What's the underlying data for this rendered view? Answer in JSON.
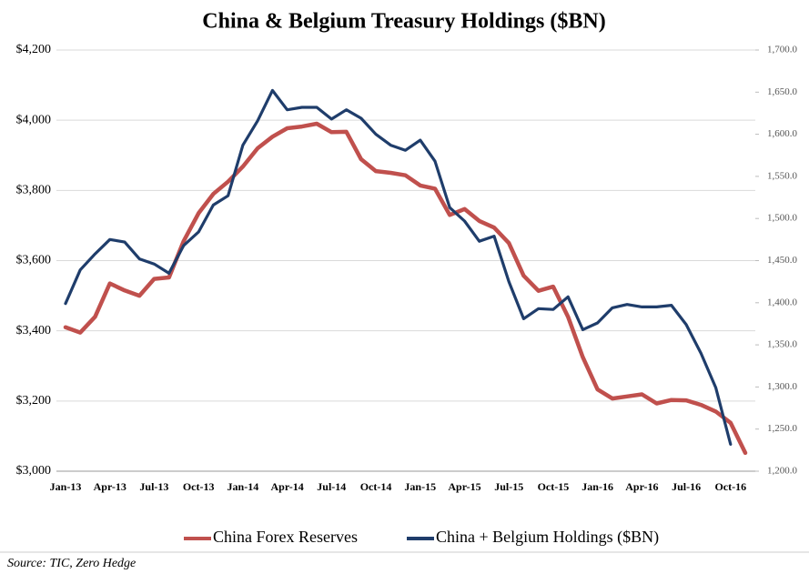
{
  "chart_data": {
    "type": "line",
    "title": "China & Belgium Treasury Holdings ($BN)",
    "source": "Source: TIC, Zero Hedge",
    "categories": [
      "Jan-13",
      null,
      null,
      "Apr-13",
      null,
      null,
      "Jul-13",
      null,
      null,
      "Oct-13",
      null,
      null,
      "Jan-14",
      null,
      null,
      "Apr-14",
      null,
      null,
      "Jul-14",
      null,
      null,
      "Oct-14",
      null,
      null,
      "Jan-15",
      null,
      null,
      "Apr-15",
      null,
      null,
      "Jul-15",
      null,
      null,
      "Oct-15",
      null,
      null,
      "Jan-16",
      null,
      null,
      "Apr-16",
      null,
      null,
      "Jul-16",
      null,
      null,
      "Oct-16",
      null
    ],
    "series": [
      {
        "name": "China Forex Reserves",
        "color": "#c0504d",
        "axis": "y",
        "values": [
          3410,
          3395,
          3440,
          3535,
          3515,
          3500,
          3548,
          3552,
          3656,
          3735,
          3790,
          3825,
          3868,
          3920,
          3953,
          3977,
          3982,
          3990,
          3966,
          3967,
          3889,
          3855,
          3850,
          3843,
          3814,
          3805,
          3730,
          3747,
          3713,
          3694,
          3650,
          3557,
          3514,
          3526,
          3440,
          3325,
          3233,
          3207,
          3213,
          3219,
          3193,
          3203,
          3202,
          3189,
          3170,
          3138,
          3052
        ]
      },
      {
        "name": "China + Belgium Holdings ($BN)",
        "color": "#1f3d6b",
        "axis": "y2",
        "values": [
          1399,
          1439,
          1458,
          1475,
          1472,
          1452,
          1446,
          1435,
          1468,
          1484,
          1516,
          1527,
          1587,
          1616,
          1652,
          1629,
          1632,
          1632,
          1618,
          1629,
          1619,
          1600,
          1587,
          1581,
          1593,
          1568,
          1513,
          1497,
          1473,
          1479,
          1425,
          1381,
          1393,
          1392,
          1407,
          1368,
          1376,
          1394,
          1398,
          1395,
          1395,
          1397,
          1374,
          1340,
          1299,
          1232,
          null
        ]
      }
    ],
    "ylim": [
      3000,
      4200
    ],
    "yticks": [
      {
        "value": 3000,
        "label": "$3,000"
      },
      {
        "value": 3200,
        "label": "$3,200"
      },
      {
        "value": 3400,
        "label": "$3,400"
      },
      {
        "value": 3600,
        "label": "$3,600"
      },
      {
        "value": 3800,
        "label": "$3,800"
      },
      {
        "value": 4000,
        "label": "$4,000"
      },
      {
        "value": 4200,
        "label": "$4,200"
      }
    ],
    "y2lim": [
      1200,
      1700
    ],
    "y2ticks": [
      {
        "value": 1200,
        "label": "1,200.0"
      },
      {
        "value": 1250,
        "label": "1,250.0"
      },
      {
        "value": 1300,
        "label": "1,300.0"
      },
      {
        "value": 1350,
        "label": "1,350.0"
      },
      {
        "value": 1400,
        "label": "1,400.0"
      },
      {
        "value": 1450,
        "label": "1,450.0"
      },
      {
        "value": 1500,
        "label": "1,500.0"
      },
      {
        "value": 1550,
        "label": "1,550.0"
      },
      {
        "value": 1600,
        "label": "1,600.0"
      },
      {
        "value": 1650,
        "label": "1,650.0"
      },
      {
        "value": 1700,
        "label": "1,700.0"
      }
    ],
    "grid": true,
    "legend": "bottom"
  }
}
